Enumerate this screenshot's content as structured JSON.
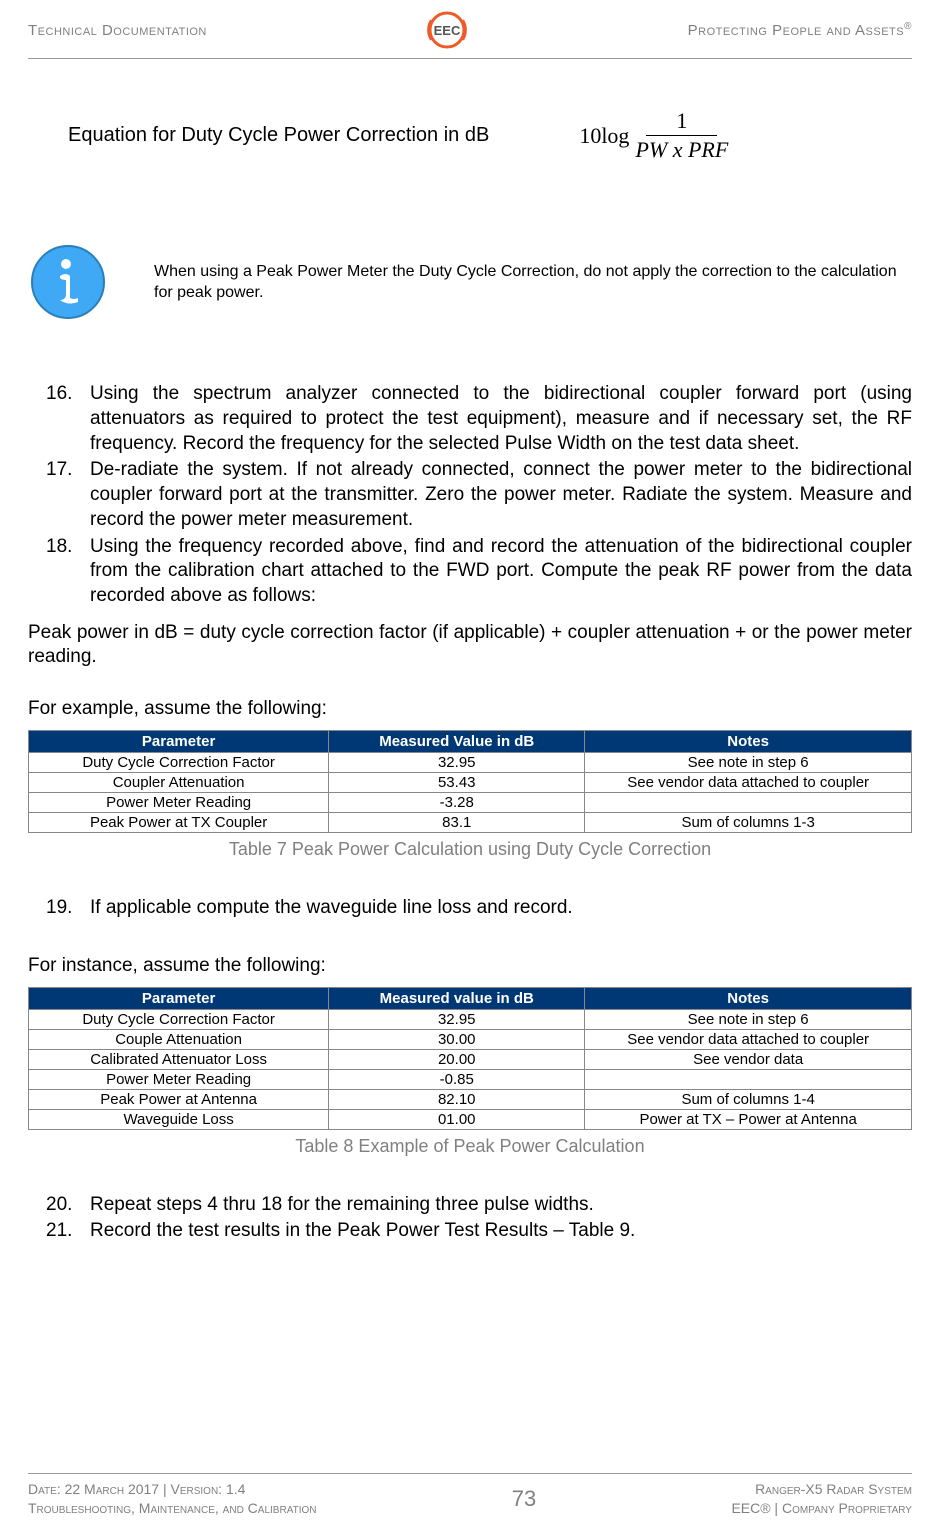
{
  "header": {
    "left": "Technical Documentation",
    "right_pre": "Protecting People and Assets",
    "right_sup": "®"
  },
  "equation": {
    "label": "Equation for Duty Cycle Power Correction in dB",
    "tenlog": "10log",
    "numerator": "1",
    "denominator": "PW x PRF"
  },
  "note": {
    "text": "When using a Peak Power Meter the Duty Cycle Correction, do not apply the correction to the calculation for peak power."
  },
  "steps_a": [
    {
      "n": "16.",
      "t": "Using the spectrum analyzer connected to the bidirectional coupler forward port (using attenuators as required to protect the test equipment), measure and if necessary set, the RF frequency.  Record the frequency for the selected Pulse Width on the test data sheet."
    },
    {
      "n": "17.",
      "t": "De-radiate the system. If not already connected, connect the power meter to the bidirectional coupler forward port at the transmitter.  Zero the power meter. Radiate the system. Measure and record the power meter measurement."
    },
    {
      "n": "18.",
      "t": "Using the frequency recorded above, find and record the attenuation of the bidirectional coupler from the calibration chart attached to the FWD port.  Compute the peak RF power from the data recorded above as follows:"
    }
  ],
  "peak_formula": "Peak power in dB = duty cycle correction factor (if applicable) + coupler attenuation + or   the power meter reading.",
  "example1_label": "For example, assume the following:",
  "table1": {
    "headers": [
      "Parameter",
      "Measured Value in dB",
      "Notes"
    ],
    "rows": [
      [
        "Duty Cycle Correction Factor",
        "32.95",
        "See note in step 6"
      ],
      [
        "Coupler Attenuation",
        "53.43",
        "See vendor data attached to coupler"
      ],
      [
        "Power Meter Reading",
        "-3.28",
        ""
      ],
      [
        "Peak Power at TX Coupler",
        "83.1",
        "Sum of columns 1-3"
      ]
    ],
    "caption": "Table 7 Peak Power Calculation using Duty Cycle Correction",
    "col_widths": [
      "34%",
      "29%",
      "37%"
    ],
    "header_bg": "#003875",
    "header_color": "#ffffff",
    "border_color": "#888888"
  },
  "step19": {
    "n": "19.",
    "t": "If applicable compute the waveguide line loss and record."
  },
  "example2_label": "For instance, assume the following:",
  "table2": {
    "headers": [
      "Parameter",
      "Measured value in dB",
      "Notes"
    ],
    "rows": [
      [
        "Duty Cycle Correction Factor",
        "32.95",
        "See note in step 6"
      ],
      [
        "Couple Attenuation",
        "30.00",
        "See vendor data attached to coupler"
      ],
      [
        "Calibrated Attenuator Loss",
        "20.00",
        "See vendor data"
      ],
      [
        "Power Meter Reading",
        "-0.85",
        ""
      ],
      [
        "Peak Power at Antenna",
        "82.10",
        "Sum of columns 1-4"
      ],
      [
        "Waveguide Loss",
        "01.00",
        "Power at TX – Power at Antenna"
      ]
    ],
    "caption": "Table 8 Example of Peak Power Calculation",
    "col_widths": [
      "34%",
      "29%",
      "37%"
    ],
    "header_bg": "#003875",
    "header_color": "#ffffff",
    "border_color": "#888888"
  },
  "steps_b": [
    {
      "n": "20.",
      "t": "Repeat steps 4 thru 18 for the remaining three pulse widths."
    },
    {
      "n": "21.",
      "t": "Record the test results in the Peak Power Test Results – Table 9."
    }
  ],
  "footer": {
    "date": "Date: 22 March 2017 | Version: 1.4",
    "subtitle": "Troubleshooting, Maintenance, and Calibration",
    "pagenum": "73",
    "system": "Ranger-X5 Radar System",
    "proprietary": "EEC® | Company Proprietary"
  },
  "colors": {
    "accent_orange": "#f05a28",
    "header_gray": "#808080",
    "table_header_bg": "#003875",
    "info_bg": "#3fa9f5"
  }
}
